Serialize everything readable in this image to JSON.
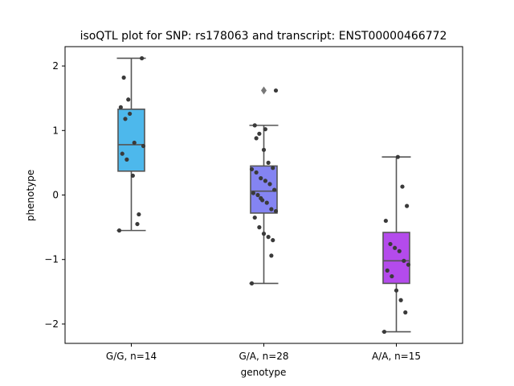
{
  "chart_data": {
    "type": "box",
    "title": "isoQTL plot for SNP: rs178063 and transcript: ENST00000466772",
    "xlabel": "genotype",
    "ylabel": "phenotype",
    "ylim": [
      -2.3,
      2.3
    ],
    "yticks": [
      -2,
      -1,
      0,
      1,
      2
    ],
    "ytick_labels": [
      "−2",
      "−1",
      "0",
      "1",
      "2"
    ],
    "categories": [
      "G/G, n=14",
      "G/A, n=28",
      "A/A, n=15"
    ],
    "colors": [
      "#4db8ec",
      "#8484f2",
      "#b44bec"
    ],
    "box_edge_color": "#555555",
    "point_color": "#3a3a3a",
    "boxes": [
      {
        "category": "G/G, n=14",
        "whisker_low": -0.55,
        "q1": 0.37,
        "median": 0.78,
        "q3": 1.33,
        "whisker_high": 2.12,
        "outliers": []
      },
      {
        "category": "G/A, n=28",
        "whisker_low": -1.37,
        "q1": -0.28,
        "median": 0.06,
        "q3": 0.45,
        "whisker_high": 1.08,
        "outliers": [
          1.62
        ]
      },
      {
        "category": "A/A, n=15",
        "whisker_low": -2.12,
        "q1": -1.37,
        "median": -1.02,
        "q3": -0.58,
        "whisker_high": 0.59,
        "outliers": []
      }
    ],
    "points": [
      [
        -0.55,
        1.82,
        1.48,
        0.3,
        -0.45,
        2.12,
        1.36,
        1.18,
        1.26,
        0.81,
        -0.3,
        0.76,
        0.64,
        0.55
      ],
      [
        -0.94,
        1.62,
        1.08,
        0.95,
        0.7,
        0.5,
        0.42,
        0.4,
        0.35,
        0.26,
        0.22,
        0.17,
        0.08,
        0.03,
        0.0,
        -0.08,
        -0.12,
        -0.22,
        -0.25,
        -0.35,
        -0.5,
        -0.6,
        -0.65,
        -0.7,
        -1.37,
        0.88,
        -0.05,
        1.02
      ],
      [
        0.59,
        0.13,
        -0.17,
        -0.4,
        -0.76,
        -0.82,
        -0.87,
        -1.02,
        -1.08,
        -1.17,
        -1.26,
        -1.48,
        -1.63,
        -1.82,
        -2.12
      ]
    ]
  }
}
